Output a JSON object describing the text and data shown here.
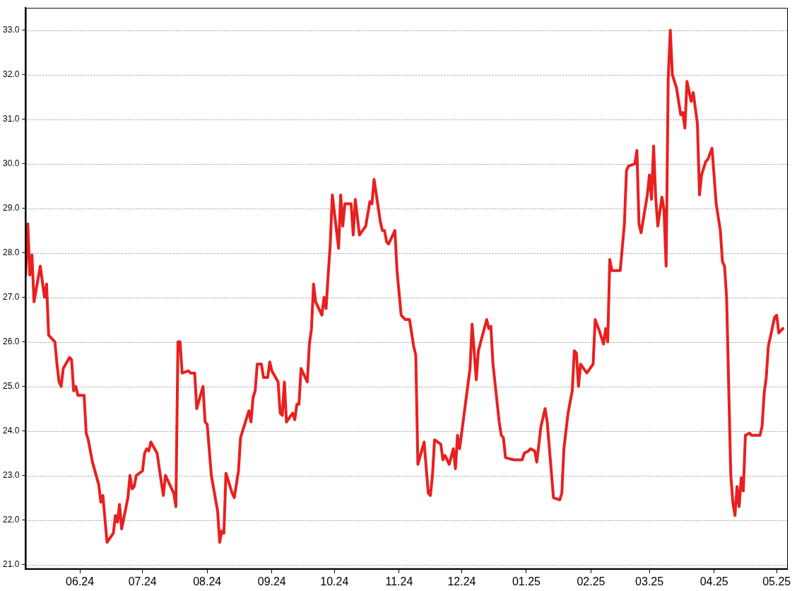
{
  "chart_data": {
    "type": "line",
    "grid": "y",
    "legend": false,
    "marker": "none",
    "line_style": "solid",
    "xlim": [
      "2024-05-06",
      "2025-05-06"
    ],
    "xticks": [
      {
        "value": "2024-06-01",
        "label": "06.24"
      },
      {
        "value": "2024-07-01",
        "label": "07.24"
      },
      {
        "value": "2024-08-01",
        "label": "08.24"
      },
      {
        "value": "2024-09-01",
        "label": "09.24"
      },
      {
        "value": "2024-10-01",
        "label": "10.24"
      },
      {
        "value": "2024-11-01",
        "label": "11.24"
      },
      {
        "value": "2024-12-01",
        "label": "12.24"
      },
      {
        "value": "2025-01-01",
        "label": "01.25"
      },
      {
        "value": "2025-02-01",
        "label": "02.25"
      },
      {
        "value": "2025-03-01",
        "label": "03.25"
      },
      {
        "value": "2025-04-01",
        "label": "04.25"
      },
      {
        "value": "2025-05-01",
        "label": "05.25"
      }
    ],
    "ylim": [
      20.9,
      33.5
    ],
    "yticks": [
      {
        "value": 21,
        "label": "21.0"
      },
      {
        "value": 22,
        "label": "22.0"
      },
      {
        "value": 23,
        "label": "23.0"
      },
      {
        "value": 24,
        "label": "24.0"
      },
      {
        "value": 25,
        "label": "25.0"
      },
      {
        "value": 26,
        "label": "26.0"
      },
      {
        "value": 27,
        "label": "27.0"
      },
      {
        "value": 28,
        "label": "28.0"
      },
      {
        "value": 29,
        "label": "29.0"
      },
      {
        "value": 30,
        "label": "30.0"
      },
      {
        "value": 31,
        "label": "31.0"
      },
      {
        "value": 32,
        "label": "32.0"
      },
      {
        "value": 33,
        "label": "33.0"
      }
    ],
    "series": [
      {
        "color": "#e8201f",
        "x": [
          "2024-05-06",
          "2024-05-07",
          "2024-05-08",
          "2024-05-09",
          "2024-05-10",
          "2024-05-13",
          "2024-05-15",
          "2024-05-16",
          "2024-05-17",
          "2024-05-20",
          "2024-05-21",
          "2024-05-22",
          "2024-05-23",
          "2024-05-24",
          "2024-05-27",
          "2024-05-28",
          "2024-05-29",
          "2024-05-30",
          "2024-05-31",
          "2024-06-03",
          "2024-06-04",
          "2024-06-05",
          "2024-06-07",
          "2024-06-10",
          "2024-06-11",
          "2024-06-12",
          "2024-06-14",
          "2024-06-17",
          "2024-06-18",
          "2024-06-19",
          "2024-06-20",
          "2024-06-21",
          "2024-06-24",
          "2024-06-25",
          "2024-06-26",
          "2024-06-27",
          "2024-06-28",
          "2024-07-01",
          "2024-07-02",
          "2024-07-03",
          "2024-07-04",
          "2024-07-05",
          "2024-07-08",
          "2024-07-10",
          "2024-07-11",
          "2024-07-12",
          "2024-07-16",
          "2024-07-17",
          "2024-07-18",
          "2024-07-19",
          "2024-07-20",
          "2024-07-23",
          "2024-07-24",
          "2024-07-26",
          "2024-07-27",
          "2024-07-30",
          "2024-07-31",
          "2024-08-01",
          "2024-08-03",
          "2024-08-06",
          "2024-08-07",
          "2024-08-08",
          "2024-08-09",
          "2024-08-10",
          "2024-08-13",
          "2024-08-14",
          "2024-08-16",
          "2024-08-17",
          "2024-08-21",
          "2024-08-22",
          "2024-08-23",
          "2024-08-24",
          "2024-08-25",
          "2024-08-27",
          "2024-08-28",
          "2024-08-30",
          "2024-08-31",
          "2024-09-01",
          "2024-09-04",
          "2024-09-05",
          "2024-09-06",
          "2024-09-07",
          "2024-09-08",
          "2024-09-11",
          "2024-09-12",
          "2024-09-13",
          "2024-09-14",
          "2024-09-15",
          "2024-09-18",
          "2024-09-19",
          "2024-09-20",
          "2024-09-21",
          "2024-09-22",
          "2024-09-25",
          "2024-09-26",
          "2024-09-27",
          "2024-09-28",
          "2024-09-29",
          "2024-09-30",
          "2024-10-03",
          "2024-10-04",
          "2024-10-05",
          "2024-10-06",
          "2024-10-09",
          "2024-10-10",
          "2024-10-11",
          "2024-10-13",
          "2024-10-16",
          "2024-10-18",
          "2024-10-19",
          "2024-10-20",
          "2024-10-23",
          "2024-10-24",
          "2024-10-25",
          "2024-10-26",
          "2024-10-27",
          "2024-10-30",
          "2024-10-31",
          "2024-11-02",
          "2024-11-04",
          "2024-11-06",
          "2024-11-08",
          "2024-11-09",
          "2024-11-10",
          "2024-11-13",
          "2024-11-15",
          "2024-11-16",
          "2024-11-17",
          "2024-11-18",
          "2024-11-21",
          "2024-11-22",
          "2024-11-23",
          "2024-11-25",
          "2024-11-27",
          "2024-11-28",
          "2024-11-29",
          "2024-11-30",
          "2024-12-05",
          "2024-12-06",
          "2024-12-08",
          "2024-12-09",
          "2024-12-13",
          "2024-12-14",
          "2024-12-15",
          "2024-12-16",
          "2024-12-19",
          "2024-12-20",
          "2024-12-21",
          "2024-12-22",
          "2024-12-26",
          "2024-12-30",
          "2024-12-31",
          "2025-01-02",
          "2025-01-03",
          "2025-01-05",
          "2025-01-06",
          "2025-01-08",
          "2025-01-10",
          "2025-01-11",
          "2025-01-14",
          "2025-01-17",
          "2025-01-18",
          "2025-01-19",
          "2025-01-21",
          "2025-01-23",
          "2025-01-24",
          "2025-01-25",
          "2025-01-26",
          "2025-01-27",
          "2025-01-30",
          "2025-02-02",
          "2025-02-03",
          "2025-02-05",
          "2025-02-07",
          "2025-02-08",
          "2025-02-09",
          "2025-02-10",
          "2025-02-11",
          "2025-02-15",
          "2025-02-17",
          "2025-02-18",
          "2025-02-19",
          "2025-02-22",
          "2025-02-23",
          "2025-02-24",
          "2025-02-25",
          "2025-02-28",
          "2025-03-01",
          "2025-03-02",
          "2025-03-03",
          "2025-03-04",
          "2025-03-05",
          "2025-03-07",
          "2025-03-08",
          "2025-03-09",
          "2025-03-10",
          "2025-03-11",
          "2025-03-12",
          "2025-03-14",
          "2025-03-16",
          "2025-03-17",
          "2025-03-18",
          "2025-03-19",
          "2025-03-21",
          "2025-03-22",
          "2025-03-24",
          "2025-03-25",
          "2025-03-26",
          "2025-03-28",
          "2025-03-29",
          "2025-03-31",
          "2025-04-02",
          "2025-04-04",
          "2025-04-05",
          "2025-04-06",
          "2025-04-07",
          "2025-04-08",
          "2025-04-09",
          "2025-04-10",
          "2025-04-11",
          "2025-04-12",
          "2025-04-13",
          "2025-04-14",
          "2025-04-15",
          "2025-04-16",
          "2025-04-18",
          "2025-04-19",
          "2025-04-23",
          "2025-04-24",
          "2025-04-25",
          "2025-04-26",
          "2025-04-27",
          "2025-04-30",
          "2025-05-01",
          "2025-05-02",
          "2025-05-04"
        ],
        "values": [
          27.5,
          28.65,
          27.5,
          27.95,
          26.9,
          27.7,
          27.0,
          27.3,
          26.15,
          26.0,
          25.5,
          25.1,
          25.0,
          25.4,
          25.65,
          25.6,
          24.9,
          25.0,
          24.8,
          24.8,
          23.95,
          23.8,
          23.3,
          22.8,
          22.4,
          22.55,
          21.5,
          21.7,
          22.1,
          21.95,
          22.35,
          21.8,
          22.5,
          23.0,
          22.7,
          22.75,
          23.0,
          23.1,
          23.5,
          23.6,
          23.55,
          23.75,
          23.5,
          22.85,
          22.55,
          23.0,
          22.6,
          22.3,
          26.0,
          26.0,
          25.3,
          25.35,
          25.3,
          25.3,
          24.5,
          25.0,
          24.2,
          24.15,
          23.0,
          22.2,
          21.5,
          21.75,
          21.7,
          23.05,
          22.6,
          22.5,
          23.1,
          23.85,
          24.45,
          24.2,
          24.75,
          24.9,
          25.5,
          25.5,
          25.2,
          25.2,
          25.55,
          25.35,
          25.1,
          24.4,
          24.35,
          25.1,
          24.2,
          24.4,
          24.25,
          24.6,
          24.6,
          25.4,
          25.1,
          25.95,
          26.3,
          27.3,
          26.9,
          26.6,
          27.0,
          26.75,
          27.5,
          28.2,
          29.3,
          28.1,
          29.3,
          28.6,
          29.1,
          29.1,
          28.4,
          29.2,
          28.4,
          28.6,
          29.15,
          29.1,
          29.65,
          28.7,
          28.5,
          28.5,
          28.25,
          28.2,
          28.5,
          27.6,
          26.6,
          26.5,
          26.5,
          25.9,
          25.7,
          23.25,
          23.75,
          22.6,
          22.55,
          23.0,
          23.8,
          23.7,
          23.35,
          23.45,
          23.25,
          23.6,
          23.15,
          23.9,
          23.6,
          25.4,
          26.4,
          25.15,
          25.8,
          26.5,
          26.3,
          26.35,
          25.5,
          24.2,
          23.9,
          23.85,
          23.4,
          23.35,
          23.35,
          23.5,
          23.55,
          23.6,
          23.55,
          23.3,
          24.1,
          24.5,
          24.2,
          22.5,
          22.45,
          22.6,
          23.6,
          24.4,
          24.9,
          25.8,
          25.75,
          25.0,
          25.5,
          25.3,
          25.5,
          26.5,
          26.25,
          25.95,
          26.3,
          26.0,
          27.85,
          27.6,
          27.6,
          28.65,
          29.85,
          29.95,
          30.0,
          30.3,
          28.65,
          28.45,
          29.3,
          29.75,
          29.2,
          30.4,
          29.25,
          28.6,
          29.25,
          28.95,
          27.7,
          31.9,
          33.0,
          32.0,
          31.7,
          31.1,
          31.15,
          30.8,
          31.85,
          31.4,
          31.6,
          30.9,
          29.3,
          29.75,
          30.05,
          30.1,
          30.35,
          29.1,
          28.5,
          27.8,
          27.7,
          27.0,
          25.0,
          23.0,
          22.4,
          22.1,
          22.75,
          22.3,
          22.95,
          22.65,
          23.9,
          23.95,
          23.9,
          23.9,
          24.1,
          24.85,
          25.2,
          25.9,
          26.55,
          26.6,
          26.2,
          26.3
        ]
      }
    ]
  }
}
